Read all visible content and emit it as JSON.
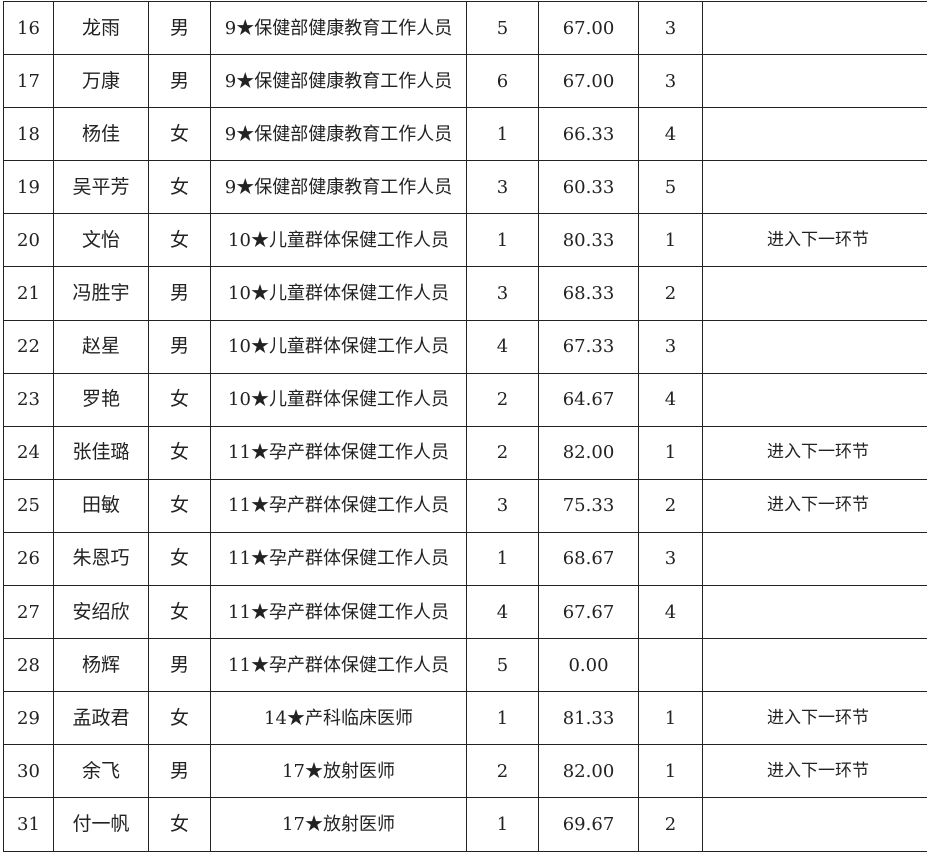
{
  "rows": [
    {
      "no": "16",
      "name": "龙雨",
      "gender": "男",
      "position": "9★保健部健康教育工作人员",
      "seq": "5",
      "score": "67.00",
      "rank": "3",
      "remark": ""
    },
    {
      "no": "17",
      "name": "万康",
      "gender": "男",
      "position": "9★保健部健康教育工作人员",
      "seq": "6",
      "score": "67.00",
      "rank": "3",
      "remark": ""
    },
    {
      "no": "18",
      "name": "杨佳",
      "gender": "女",
      "position": "9★保健部健康教育工作人员",
      "seq": "1",
      "score": "66.33",
      "rank": "4",
      "remark": ""
    },
    {
      "no": "19",
      "name": "吴平芳",
      "gender": "女",
      "position": "9★保健部健康教育工作人员",
      "seq": "3",
      "score": "60.33",
      "rank": "5",
      "remark": ""
    },
    {
      "no": "20",
      "name": "文怡",
      "gender": "女",
      "position": "10★儿童群体保健工作人员",
      "seq": "1",
      "score": "80.33",
      "rank": "1",
      "remark": "进入下一环节"
    },
    {
      "no": "21",
      "name": "冯胜宇",
      "gender": "男",
      "position": "10★儿童群体保健工作人员",
      "seq": "3",
      "score": "68.33",
      "rank": "2",
      "remark": ""
    },
    {
      "no": "22",
      "name": "赵星",
      "gender": "男",
      "position": "10★儿童群体保健工作人员",
      "seq": "4",
      "score": "67.33",
      "rank": "3",
      "remark": ""
    },
    {
      "no": "23",
      "name": "罗艳",
      "gender": "女",
      "position": "10★儿童群体保健工作人员",
      "seq": "2",
      "score": "64.67",
      "rank": "4",
      "remark": ""
    },
    {
      "no": "24",
      "name": "张佳璐",
      "gender": "女",
      "position": "11★孕产群体保健工作人员",
      "seq": "2",
      "score": "82.00",
      "rank": "1",
      "remark": "进入下一环节"
    },
    {
      "no": "25",
      "name": "田敏",
      "gender": "女",
      "position": "11★孕产群体保健工作人员",
      "seq": "3",
      "score": "75.33",
      "rank": "2",
      "remark": "进入下一环节"
    },
    {
      "no": "26",
      "name": "朱恩巧",
      "gender": "女",
      "position": "11★孕产群体保健工作人员",
      "seq": "1",
      "score": "68.67",
      "rank": "3",
      "remark": ""
    },
    {
      "no": "27",
      "name": "安绍欣",
      "gender": "女",
      "position": "11★孕产群体保健工作人员",
      "seq": "4",
      "score": "67.67",
      "rank": "4",
      "remark": ""
    },
    {
      "no": "28",
      "name": "杨辉",
      "gender": "男",
      "position": "11★孕产群体保健工作人员",
      "seq": "5",
      "score": "0.00",
      "rank": "",
      "remark": ""
    },
    {
      "no": "29",
      "name": "孟政君",
      "gender": "女",
      "position": "14★产科临床医师",
      "seq": "1",
      "score": "81.33",
      "rank": "1",
      "remark": "进入下一环节"
    },
    {
      "no": "30",
      "name": "余飞",
      "gender": "男",
      "position": "17★放射医师",
      "seq": "2",
      "score": "82.00",
      "rank": "1",
      "remark": "进入下一环节"
    },
    {
      "no": "31",
      "name": "付一帆",
      "gender": "女",
      "position": "17★放射医师",
      "seq": "1",
      "score": "69.67",
      "rank": "2",
      "remark": ""
    }
  ]
}
